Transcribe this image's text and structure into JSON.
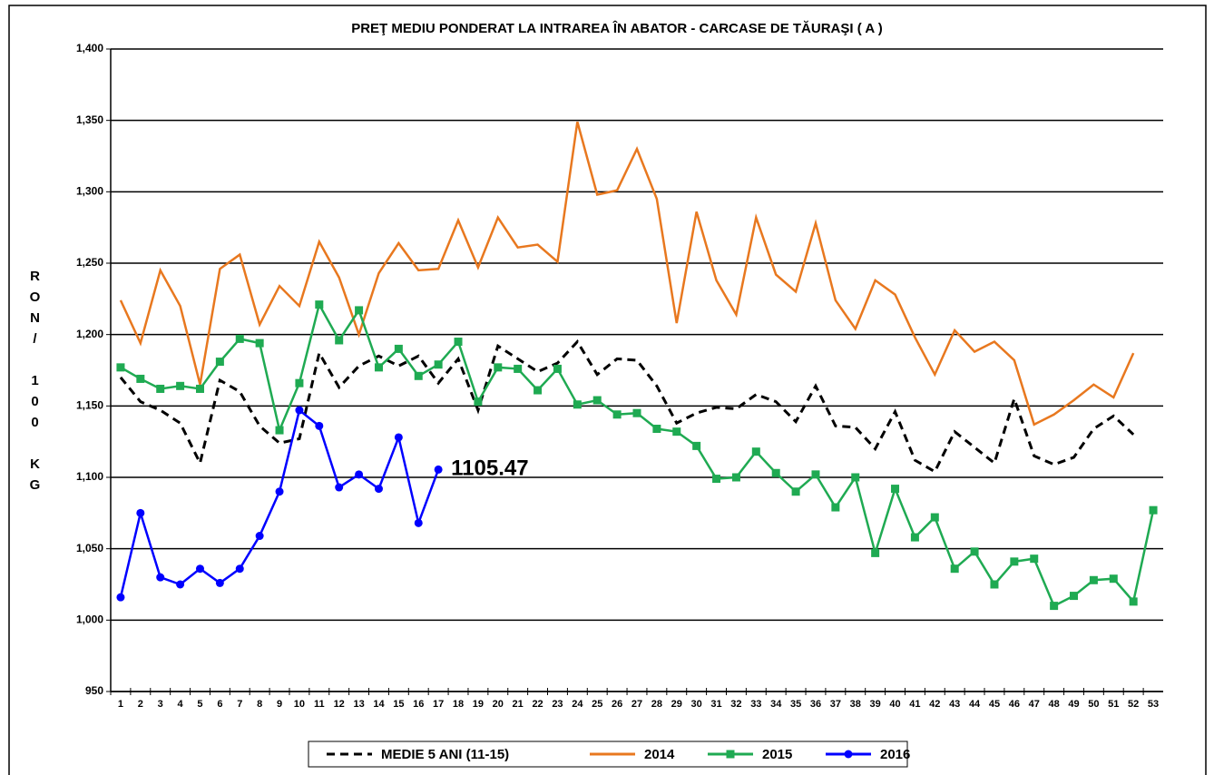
{
  "chart_data": {
    "type": "line",
    "title": "PREŢ MEDIU PONDERAT LA INTRAREA ÎN ABATOR - CARCASE DE TĂURAŞI ( A )",
    "y_label": "RON/ 100 KG",
    "annotation": "1105.47",
    "categories": [
      "1",
      "2",
      "3",
      "4",
      "5",
      "6",
      "7",
      "8",
      "9",
      "10",
      "11",
      "12",
      "13",
      "14",
      "15",
      "16",
      "17",
      "18",
      "19",
      "20",
      "21",
      "22",
      "23",
      "24",
      "25",
      "26",
      "27",
      "28",
      "29",
      "30",
      "31",
      "32",
      "33",
      "34",
      "35",
      "36",
      "37",
      "38",
      "39",
      "40",
      "41",
      "42",
      "43",
      "44",
      "45",
      "46",
      "47",
      "48",
      "49",
      "50",
      "51",
      "52",
      "53"
    ],
    "ylim": [
      950,
      1400
    ],
    "yticks": [
      {
        "value": 950,
        "label": "950"
      },
      {
        "value": 1000,
        "label": "1,000"
      },
      {
        "value": 1050,
        "label": "1,050"
      },
      {
        "value": 1100,
        "label": "1,100"
      },
      {
        "value": 1150,
        "label": "1,150"
      },
      {
        "value": 1200,
        "label": "1,200"
      },
      {
        "value": 1250,
        "label": "1,250"
      },
      {
        "value": 1300,
        "label": "1,300"
      },
      {
        "value": 1350,
        "label": "1,350"
      },
      {
        "value": 1400,
        "label": "1,400"
      }
    ],
    "grid": true,
    "legend": "bottom",
    "series": [
      {
        "name": "MEDIE 5 ANI (11-15)",
        "color": "#000000",
        "dashed": true,
        "marker": false,
        "values": [
          1170,
          1153,
          1147,
          1138,
          1110,
          1168,
          1160,
          1136,
          1124,
          1127,
          1187,
          1163,
          1178,
          1185,
          1178,
          1185,
          1166,
          1183,
          1147,
          1192,
          1183,
          1174,
          1180,
          1195,
          1172,
          1183,
          1182,
          1164,
          1138,
          1145,
          1149,
          1148,
          1158,
          1153,
          1139,
          1164,
          1136,
          1135,
          1120,
          1146,
          1112,
          1104,
          1132,
          1121,
          1110,
          1155,
          1115,
          1109,
          1114,
          1134,
          1143,
          1130,
          null
        ]
      },
      {
        "name": "2014",
        "color": "#e8781f",
        "dashed": false,
        "marker": false,
        "values": [
          1224,
          1194,
          1245,
          1220,
          1165,
          1246,
          1256,
          1207,
          1234,
          1220,
          1265,
          1240,
          1200,
          1243,
          1264,
          1245,
          1246,
          1280,
          1247,
          1282,
          1261,
          1263,
          1251,
          1349,
          1298,
          1301,
          1330,
          1295,
          1208,
          1286,
          1238,
          1214,
          1282,
          1242,
          1230,
          1278,
          1224,
          1204,
          1238,
          1228,
          1198,
          1172,
          1203,
          1188,
          1195,
          1182,
          1137,
          1144,
          1154,
          1165,
          1156,
          1187,
          null
        ]
      },
      {
        "name": "2015",
        "color": "#1faa52",
        "dashed": false,
        "marker": "square",
        "values": [
          1177,
          1169,
          1162,
          1164,
          1162,
          1181,
          1197,
          1194,
          1133,
          1166,
          1221,
          1196,
          1217,
          1177,
          1190,
          1171,
          1179,
          1195,
          1153,
          1177,
          1176,
          1161,
          1176,
          1151,
          1154,
          1144,
          1145,
          1134,
          1132,
          1122,
          1099,
          1100,
          1118,
          1103,
          1090,
          1102,
          1079,
          1100,
          1047,
          1092,
          1058,
          1072,
          1036,
          1048,
          1025,
          1041,
          1043,
          1010,
          1017,
          1028,
          1029,
          1013,
          1077
        ]
      },
      {
        "name": "2016",
        "color": "#0000ff",
        "dashed": false,
        "marker": "circle",
        "values": [
          1016,
          1075,
          1030,
          1025,
          1036,
          1026,
          1036,
          1059,
          1090,
          1147,
          1136,
          1093,
          1102,
          1092,
          1128,
          1068,
          1105.47,
          null,
          null,
          null,
          null,
          null,
          null,
          null,
          null,
          null,
          null,
          null,
          null,
          null,
          null,
          null,
          null,
          null,
          null,
          null,
          null,
          null,
          null,
          null,
          null,
          null,
          null,
          null,
          null,
          null,
          null,
          null,
          null,
          null,
          null,
          null,
          null
        ]
      }
    ]
  }
}
